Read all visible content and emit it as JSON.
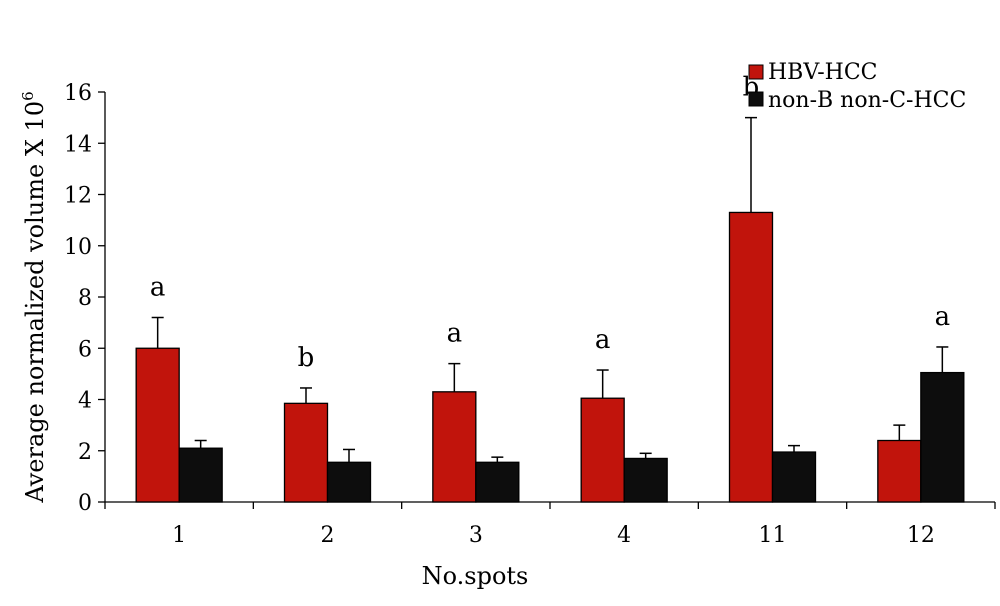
{
  "chart_data": {
    "type": "bar",
    "categories": [
      "1",
      "2",
      "3",
      "4",
      "11",
      "12"
    ],
    "series": [
      {
        "name": "HBV-HCC",
        "color": "#c1140c",
        "values": [
          6.0,
          3.85,
          4.3,
          4.05,
          11.3,
          2.4
        ],
        "errors": [
          1.2,
          0.6,
          1.1,
          1.1,
          3.7,
          0.6
        ]
      },
      {
        "name": "non-B non-C-HCC",
        "color": "#0d0d0d",
        "values": [
          2.1,
          1.55,
          1.55,
          1.7,
          1.95,
          5.05
        ],
        "errors": [
          0.3,
          0.5,
          0.2,
          0.2,
          0.25,
          1.0
        ]
      }
    ],
    "annotations": [
      "a",
      "b",
      "a",
      "a",
      "b",
      "a"
    ],
    "xlabel": "No.spots",
    "ylabel": "Average normalized volume X 10",
    "ylabel_superscript": "6",
    "ylim": [
      0,
      16
    ],
    "yticks": [
      0,
      2,
      4,
      6,
      8,
      10,
      12,
      14,
      16
    ],
    "grid": false,
    "legend_position": "top-right"
  }
}
